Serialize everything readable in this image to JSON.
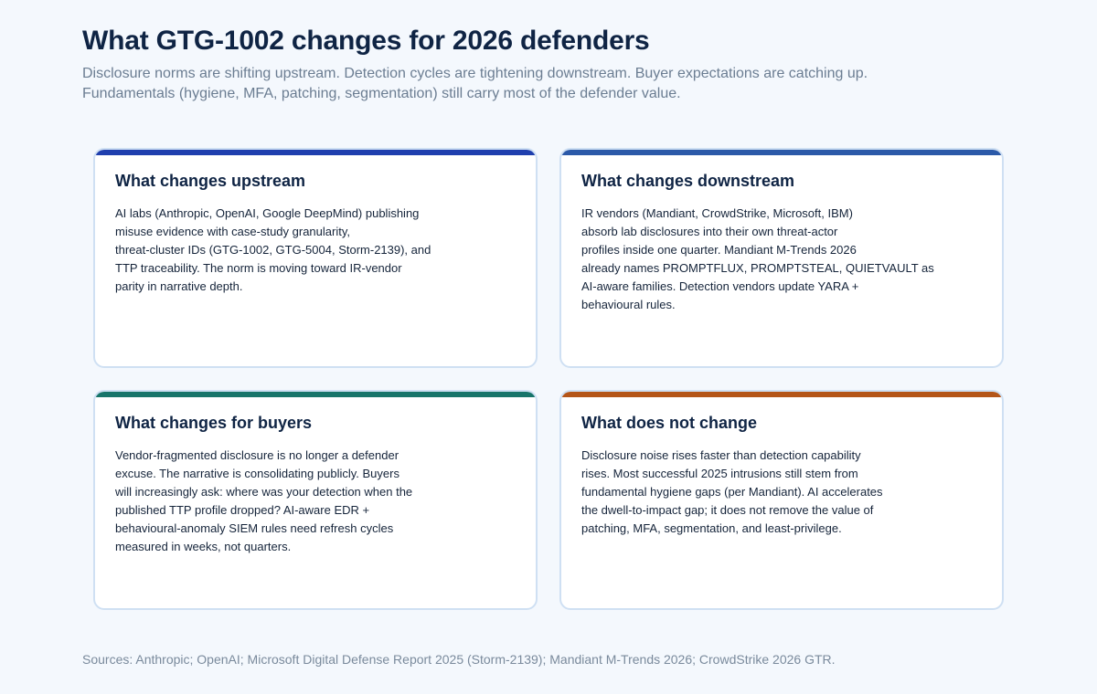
{
  "header": {
    "title": "What GTG-1002 changes for 2026 defenders",
    "subtitle_lines": [
      "Disclosure norms are shifting upstream. Detection cycles are tightening downstream. Buyer expectations are catching up.",
      "Fundamentals (hygiene, MFA, patching, segmentation) still carry most of the defender value."
    ]
  },
  "cards": [
    {
      "title": "What changes upstream",
      "accent": "#1f3fae",
      "lines": [
        "AI labs (Anthropic, OpenAI, Google DeepMind) publishing",
        "misuse evidence with case-study granularity,",
        "threat-cluster IDs (GTG-1002, GTG-5004, Storm-2139), and",
        "TTP traceability. The norm is moving toward IR-vendor",
        "parity in narrative depth."
      ]
    },
    {
      "title": "What changes downstream",
      "accent": "#2b59a8",
      "lines": [
        "IR vendors (Mandiant, CrowdStrike, Microsoft, IBM)",
        "absorb lab disclosures into their own threat-actor",
        "profiles inside one quarter. Mandiant M-Trends 2026",
        "already names PROMPTFLUX, PROMPTSTEAL, QUIETVAULT as",
        "AI-aware families. Detection vendors update YARA +",
        "behavioural rules."
      ]
    },
    {
      "title": "What changes for buyers",
      "accent": "#17756a",
      "lines": [
        "Vendor-fragmented disclosure is no longer a defender",
        "excuse. The narrative is consolidating publicly. Buyers",
        "will increasingly ask: where was your detection when the",
        "published TTP profile dropped? AI-aware EDR +",
        "behavioural-anomaly SIEM rules need refresh cycles",
        "measured in weeks, not quarters."
      ]
    },
    {
      "title": "What does not change",
      "accent": "#b45518",
      "lines": [
        "Disclosure noise rises faster than detection capability",
        "rises. Most successful 2025 intrusions still stem from",
        "fundamental hygiene gaps (per Mandiant). AI accelerates",
        "the dwell-to-impact gap; it does not remove the value of",
        "patching, MFA, segmentation, and least-privilege."
      ]
    }
  ],
  "footer": {
    "sources": "Sources: Anthropic; OpenAI; Microsoft Digital Defense Report 2025 (Storm-2139); Mandiant M-Trends 2026; CrowdStrike 2026 GTR."
  }
}
